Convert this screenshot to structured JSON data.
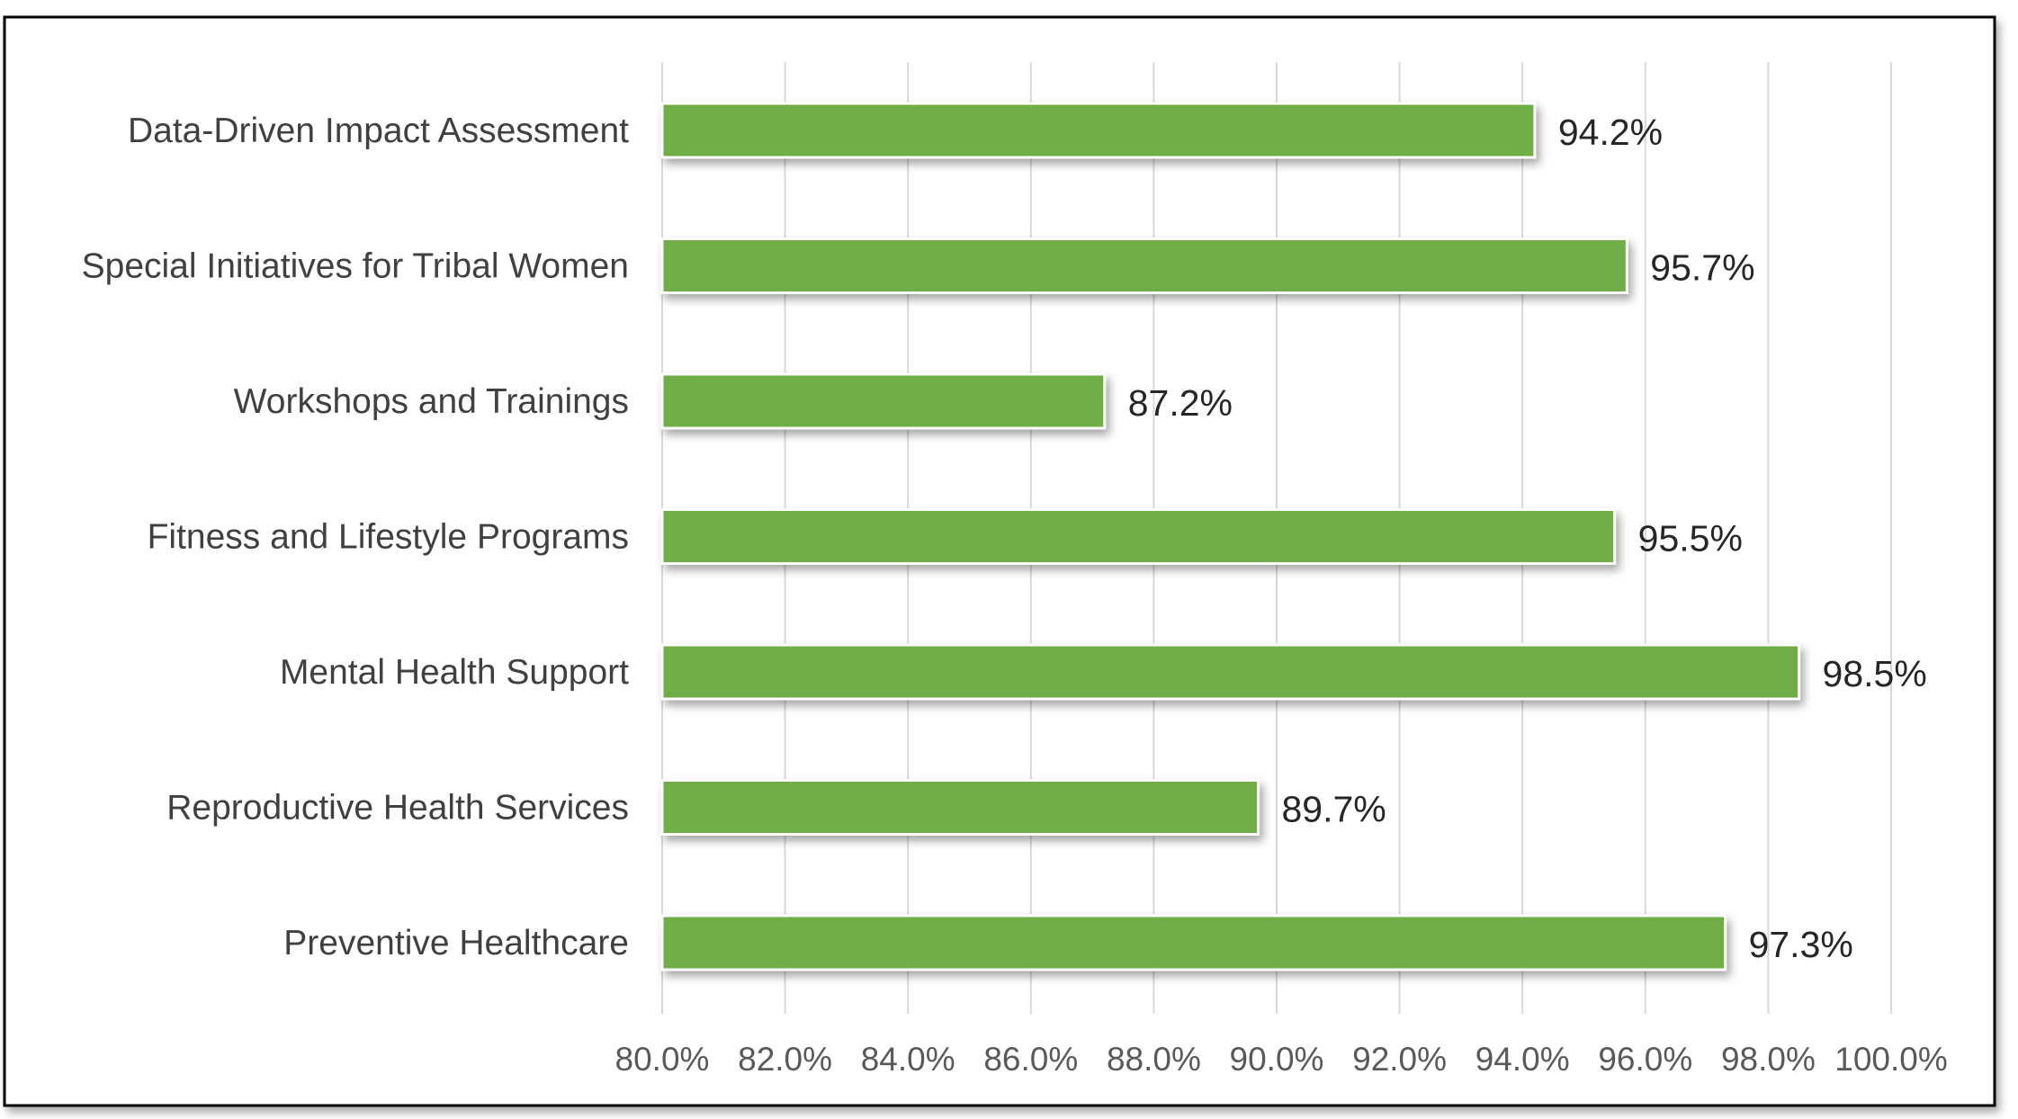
{
  "chart_data": {
    "type": "bar",
    "orientation": "horizontal",
    "title": "",
    "xlabel": "",
    "ylabel": "",
    "categories": [
      "Data-Driven Impact Assessment",
      "Special Initiatives for Tribal Women",
      "Workshops and Trainings",
      "Fitness and Lifestyle Programs",
      "Mental Health Support",
      "Reproductive Health Services",
      "Preventive Healthcare"
    ],
    "values": [
      94.2,
      95.7,
      87.2,
      95.5,
      98.5,
      89.7,
      97.3
    ],
    "data_labels": [
      "94.2%",
      "95.7%",
      "87.2%",
      "95.5%",
      "98.5%",
      "89.7%",
      "97.3%"
    ],
    "xlim": [
      80,
      100
    ],
    "x_ticks": [
      80,
      82,
      84,
      86,
      88,
      90,
      92,
      94,
      96,
      98,
      100
    ],
    "x_tick_labels": [
      "80.0%",
      "82.0%",
      "84.0%",
      "86.0%",
      "88.0%",
      "90.0%",
      "92.0%",
      "94.0%",
      "96.0%",
      "98.0%",
      "100.0%"
    ],
    "grid": "vertical",
    "legend": "none",
    "colors": {
      "bar": "#70AD47",
      "grid": "#D9D9D9",
      "frame": "#000000"
    }
  }
}
